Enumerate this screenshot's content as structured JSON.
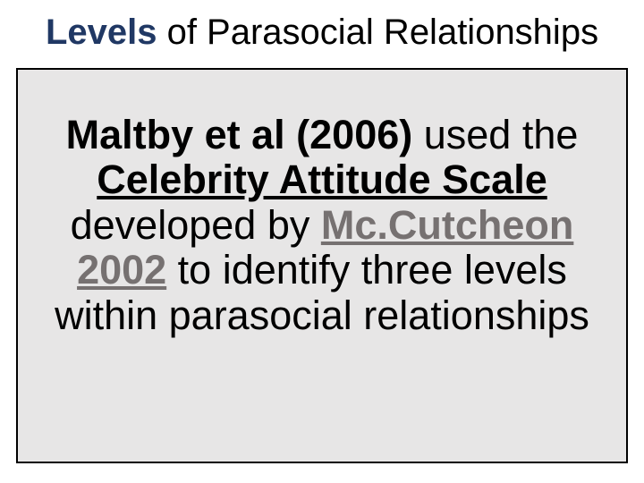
{
  "title": {
    "levels": "Levels",
    "rest": " of Parasocial Relationships"
  },
  "body": {
    "maltby": "Maltby et al (2006)",
    "t1": " used the ",
    "cas": "Celebrity Attitude Scale",
    "t2": " developed by ",
    "mcc": "Mc.Cutcheon 2002",
    "t3": " to identify three levels within parasocial relationships"
  },
  "colors": {
    "title_accent": "#203864",
    "box_bg": "#e7e6e6",
    "box_border": "#000000",
    "mcc_color": "#767171",
    "text_color": "#000000"
  },
  "typography": {
    "title_fontsize": 40,
    "body_fontsize": 45,
    "font_family": "Arial"
  },
  "layout": {
    "slide_width": 720,
    "slide_height": 540
  }
}
